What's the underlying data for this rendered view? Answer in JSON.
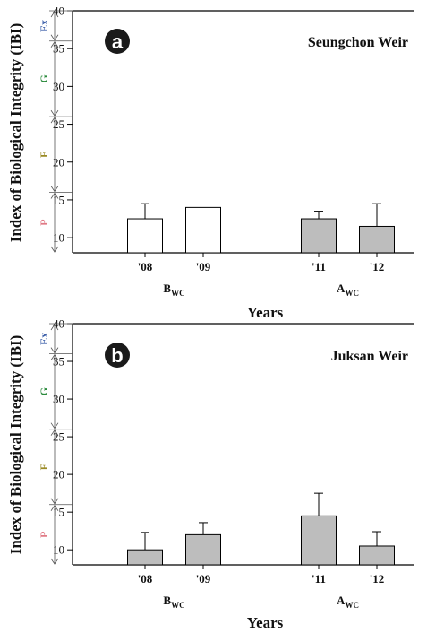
{
  "colors": {
    "before_fill": "#ffffff",
    "after_fill": "#bdbdbd",
    "axis": "#000000",
    "band_Ex": "#3a5da8",
    "band_G": "#2a8a3c",
    "band_F": "#9a8a24",
    "band_P": "#e07a86",
    "badge": "#1a1a1a"
  },
  "y_axis_label": "Index of Biological Integrity (IBI)",
  "x_axis_label": "Years",
  "chart_data": [
    {
      "type": "bar",
      "panel_label": "a",
      "title": "Seungchon Weir",
      "ylabel": "Index of Biological Integrity (IBI)",
      "xlabel": "Years",
      "ylim": [
        8,
        40
      ],
      "yticks": [
        10,
        15,
        20,
        25,
        30,
        35,
        40
      ],
      "categories": [
        "'08",
        "'09",
        "'11",
        "'12"
      ],
      "values": [
        12.5,
        14,
        12.5,
        11.5
      ],
      "error_plus": [
        2.0,
        0,
        1.0,
        3.0
      ],
      "groups": [
        {
          "label": "B",
          "sub": "WC",
          "members": [
            "'08",
            "'09"
          ],
          "fill": "before"
        },
        {
          "label": "A",
          "sub": "WC",
          "members": [
            "'11",
            "'12"
          ],
          "fill": "after"
        }
      ],
      "bands": [
        {
          "label": "Ex",
          "from": 36,
          "to": 40
        },
        {
          "label": "G",
          "from": 26,
          "to": 36
        },
        {
          "label": "F",
          "from": 16,
          "to": 26
        },
        {
          "label": "P",
          "from": 8,
          "to": 16
        }
      ],
      "grid": false
    },
    {
      "type": "bar",
      "panel_label": "b",
      "title": "Juksan Weir",
      "ylabel": "Index of Biological Integrity (IBI)",
      "xlabel": "Years",
      "ylim": [
        8,
        40
      ],
      "yticks": [
        10,
        15,
        20,
        25,
        30,
        35,
        40
      ],
      "categories": [
        "'08",
        "'09",
        "'11",
        "'12"
      ],
      "values": [
        10,
        12,
        14.5,
        10.5
      ],
      "error_plus": [
        2.3,
        1.6,
        3.0,
        1.9
      ],
      "groups": [
        {
          "label": "B",
          "sub": "WC",
          "members": [
            "'08",
            "'09"
          ],
          "fill": "after"
        },
        {
          "label": "A",
          "sub": "WC",
          "members": [
            "'11",
            "'12"
          ],
          "fill": "after"
        }
      ],
      "bands": [
        {
          "label": "Ex",
          "from": 36,
          "to": 40
        },
        {
          "label": "G",
          "from": 26,
          "to": 36
        },
        {
          "label": "F",
          "from": 16,
          "to": 26
        },
        {
          "label": "P",
          "from": 8,
          "to": 16
        }
      ],
      "grid": false
    }
  ]
}
